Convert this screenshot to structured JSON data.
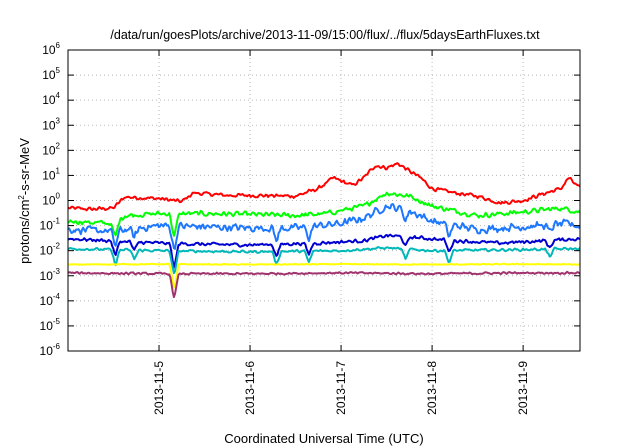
{
  "chart_data": {
    "type": "line",
    "title": "/data/run/goesPlots/archive/2013-11-09/15:00/flux/../flux/5daysEarthFluxes.txt",
    "xlabel": "Coordinated Universal Time (UTC)",
    "ylabel": "protons/cm²-s-sr-MeV",
    "ylabel_parts": {
      "pre": "protons/cm",
      "sup": "2",
      "post": "-s-sr-MeV"
    },
    "yscale": "log",
    "ylim": [
      1e-06,
      1000000.0
    ],
    "y_ticks": [
      {
        "base": "10",
        "exp": "6"
      },
      {
        "base": "10",
        "exp": "5"
      },
      {
        "base": "10",
        "exp": "4"
      },
      {
        "base": "10",
        "exp": "3"
      },
      {
        "base": "10",
        "exp": "2"
      },
      {
        "base": "10",
        "exp": "1"
      },
      {
        "base": "10",
        "exp": "0"
      },
      {
        "base": "10",
        "exp": "-1"
      },
      {
        "base": "10",
        "exp": "-2"
      },
      {
        "base": "10",
        "exp": "-3"
      },
      {
        "base": "10",
        "exp": "-4"
      },
      {
        "base": "10",
        "exp": "-5"
      },
      {
        "base": "10",
        "exp": "-6"
      }
    ],
    "xlim": [
      "2013-11-04 00:00",
      "2013-11-09 15:00"
    ],
    "x_ticks": [
      "2013-11-5",
      "2013-11-6",
      "2013-11-7",
      "2013-11-8",
      "2013-11-9"
    ],
    "grid": true,
    "series": [
      {
        "color": "#ff0000",
        "points": [
          [
            "2013-11-04 00:00",
            0.5
          ],
          [
            "2013-11-04 06:00",
            0.45
          ],
          [
            "2013-11-04 12:00",
            0.5
          ],
          [
            "2013-11-04 15:00",
            1.4
          ],
          [
            "2013-11-04 18:00",
            1.3
          ],
          [
            "2013-11-05 00:00",
            1.2
          ],
          [
            "2013-11-05 06:00",
            0.9
          ],
          [
            "2013-11-05 09:00",
            2.0
          ],
          [
            "2013-11-05 18:00",
            1.6
          ],
          [
            "2013-11-06 00:00",
            1.6
          ],
          [
            "2013-11-06 12:00",
            1.5
          ],
          [
            "2013-11-06 18:00",
            3.0
          ],
          [
            "2013-11-06 22:00",
            8.0
          ],
          [
            "2013-11-07 00:00",
            6.0
          ],
          [
            "2013-11-07 03:00",
            4.0
          ],
          [
            "2013-11-07 06:00",
            8.0
          ],
          [
            "2013-11-07 09:00",
            25
          ],
          [
            "2013-11-07 12:00",
            20
          ],
          [
            "2013-11-07 15:00",
            30
          ],
          [
            "2013-11-07 18:00",
            15
          ],
          [
            "2013-11-07 21:00",
            8
          ],
          [
            "2013-11-08 00:00",
            3.0
          ],
          [
            "2013-11-08 06:00",
            2.0
          ],
          [
            "2013-11-08 12:00",
            1.5
          ],
          [
            "2013-11-08 18:00",
            0.8
          ],
          [
            "2013-11-09 00:00",
            1.0
          ],
          [
            "2013-11-09 06:00",
            2.0
          ],
          [
            "2013-11-09 10:00",
            3.0
          ],
          [
            "2013-11-09 12:00",
            8.0
          ],
          [
            "2013-11-09 15:00",
            3.0
          ]
        ]
      },
      {
        "color": "#00ff00",
        "points": [
          [
            "2013-11-04 00:00",
            0.15
          ],
          [
            "2013-11-04 12:00",
            0.12
          ],
          [
            "2013-11-04 15:00",
            0.25
          ],
          [
            "2013-11-05 00:00",
            0.3
          ],
          [
            "2013-11-05 12:00",
            0.3
          ],
          [
            "2013-11-06 00:00",
            0.28
          ],
          [
            "2013-11-06 12:00",
            0.25
          ],
          [
            "2013-11-06 20:00",
            0.3
          ],
          [
            "2013-11-07 00:00",
            0.4
          ],
          [
            "2013-11-07 06:00",
            0.6
          ],
          [
            "2013-11-07 12:00",
            2.0
          ],
          [
            "2013-11-07 18:00",
            1.5
          ],
          [
            "2013-11-08 00:00",
            0.6
          ],
          [
            "2013-11-08 12:00",
            0.25
          ],
          [
            "2013-11-09 00:00",
            0.35
          ],
          [
            "2013-11-09 10:00",
            0.5
          ],
          [
            "2013-11-09 15:00",
            0.35
          ]
        ]
      },
      {
        "color": "#1e78ff",
        "points": [
          [
            "2013-11-04 00:00",
            0.07
          ],
          [
            "2013-11-04 12:00",
            0.06
          ],
          [
            "2013-11-05 00:00",
            0.1
          ],
          [
            "2013-11-05 12:00",
            0.09
          ],
          [
            "2013-11-06 00:00",
            0.08
          ],
          [
            "2013-11-06 12:00",
            0.08
          ],
          [
            "2013-11-07 00:00",
            0.12
          ],
          [
            "2013-11-07 06:00",
            0.2
          ],
          [
            "2013-11-07 12:00",
            0.6
          ],
          [
            "2013-11-07 18:00",
            0.4
          ],
          [
            "2013-11-08 00:00",
            0.15
          ],
          [
            "2013-11-08 12:00",
            0.07
          ],
          [
            "2013-11-09 00:00",
            0.09
          ],
          [
            "2013-11-09 12:00",
            0.12
          ],
          [
            "2013-11-09 15:00",
            0.09
          ]
        ]
      },
      {
        "color": "#0000d0",
        "points": [
          [
            "2013-11-04 00:00",
            0.03
          ],
          [
            "2013-11-05 00:00",
            0.02
          ],
          [
            "2013-11-05 12:00",
            0.018
          ],
          [
            "2013-11-06 00:00",
            0.017
          ],
          [
            "2013-11-06 18:00",
            0.02
          ],
          [
            "2013-11-07 06:00",
            0.025
          ],
          [
            "2013-11-07 12:00",
            0.04
          ],
          [
            "2013-11-07 18:00",
            0.035
          ],
          [
            "2013-11-08 06:00",
            0.025
          ],
          [
            "2013-11-08 18:00",
            0.02
          ],
          [
            "2013-11-09 06:00",
            0.025
          ],
          [
            "2013-11-09 15:00",
            0.03
          ]
        ]
      },
      {
        "color": "#00b8b8",
        "points": [
          [
            "2013-11-04 00:00",
            0.012
          ],
          [
            "2013-11-05 00:00",
            0.01
          ],
          [
            "2013-11-06 00:00",
            0.009
          ],
          [
            "2013-11-07 00:00",
            0.01
          ],
          [
            "2013-11-07 12:00",
            0.013
          ],
          [
            "2013-11-08 00:00",
            0.01
          ],
          [
            "2013-11-09 00:00",
            0.011
          ],
          [
            "2013-11-09 15:00",
            0.012
          ]
        ]
      },
      {
        "color": "#ffff00",
        "points": [
          [
            "2013-11-04 00:00",
            0.0028
          ],
          [
            "2013-11-05 00:00",
            0.0029
          ],
          [
            "2013-11-06 00:00",
            0.0028
          ],
          [
            "2013-11-07 00:00",
            0.0029
          ],
          [
            "2013-11-08 00:00",
            0.0028
          ],
          [
            "2013-11-09 00:00",
            0.0029
          ],
          [
            "2013-11-09 15:00",
            0.0028
          ]
        ]
      },
      {
        "color": "#a0336e",
        "points": [
          [
            "2013-11-04 00:00",
            0.0013
          ],
          [
            "2013-11-05 00:00",
            0.0012
          ],
          [
            "2013-11-06 00:00",
            0.0012
          ],
          [
            "2013-11-07 00:00",
            0.0013
          ],
          [
            "2013-11-08 00:00",
            0.0012
          ],
          [
            "2013-11-09 00:00",
            0.0013
          ],
          [
            "2013-11-09 15:00",
            0.0013
          ]
        ]
      }
    ],
    "noise_amplitude_decades": [
      0.09,
      0.12,
      0.18,
      0.08,
      0.06,
      0.02,
      0.05
    ],
    "dips": [
      {
        "series": [
          1,
          2,
          3,
          4
        ],
        "time": "2013-11-04 12:30",
        "depth": 0.6
      },
      {
        "series": [
          2,
          3,
          4
        ],
        "time": "2013-11-04 17:30",
        "depth": 0.35
      },
      {
        "series": [
          1,
          2,
          3,
          4,
          5,
          6
        ],
        "time": "2013-11-05 04:00",
        "depth": 1.0
      },
      {
        "series": [
          2,
          3,
          4
        ],
        "time": "2013-11-06 07:00",
        "depth": 0.5
      },
      {
        "series": [
          2,
          3,
          4
        ],
        "time": "2013-11-06 15:30",
        "depth": 0.45
      },
      {
        "series": [
          2,
          3,
          4
        ],
        "time": "2013-11-07 17:00",
        "depth": 0.4
      },
      {
        "series": [
          2,
          3,
          4
        ],
        "time": "2013-11-08 04:30",
        "depth": 0.5
      },
      {
        "series": [
          2,
          3,
          4
        ],
        "time": "2013-11-09 07:00",
        "depth": 0.3
      }
    ]
  }
}
